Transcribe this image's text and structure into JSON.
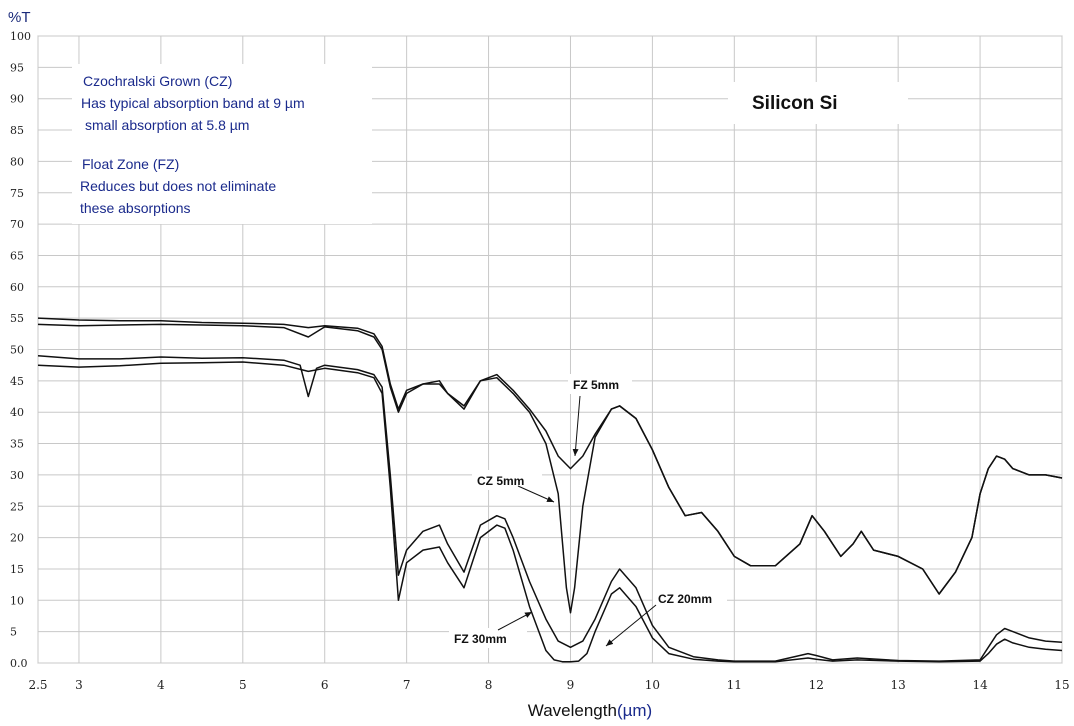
{
  "chart_data": {
    "type": "line",
    "title": "Silicon  Si",
    "ylabel": "%T",
    "xlabel": "Wavelength",
    "xlabel_unit": "(µm)",
    "xlim": [
      2.5,
      15
    ],
    "ylim": [
      0,
      100
    ],
    "x_ticks": [
      "2.5",
      "3",
      "4",
      "5",
      "6",
      "7",
      "8",
      "9",
      "10",
      "11",
      "12",
      "13",
      "14",
      "15"
    ],
    "y_ticks": [
      "0.0",
      "5",
      "10",
      "15",
      "20",
      "25",
      "30",
      "35",
      "40",
      "45",
      "50",
      "55",
      "60",
      "65",
      "70",
      "75",
      "80",
      "85",
      "90",
      "95",
      "100"
    ],
    "grid": true,
    "annotations": [
      {
        "lines": [
          "Czochralski Grown (CZ)",
          "Has typical absorption band at 9 µm",
          "small absorption at 5.8 µm"
        ]
      },
      {
        "lines": [
          "Float Zone (FZ)",
          "Reduces but does not eliminate",
          "these absorptions"
        ]
      }
    ],
    "labels": {
      "fz5": "FZ 5mm",
      "cz5": "CZ 5mm",
      "cz20": "CZ 20mm",
      "fz30": "FZ 30mm"
    },
    "series": [
      {
        "name": "FZ 5mm",
        "x": [
          2.5,
          3.0,
          3.5,
          4.0,
          4.5,
          5.0,
          5.5,
          5.8,
          6.0,
          6.4,
          6.6,
          6.7,
          6.8,
          6.9,
          7.0,
          7.2,
          7.4,
          7.5,
          7.7,
          7.9,
          8.1,
          8.3,
          8.5,
          8.7,
          8.85,
          9.0,
          9.15,
          9.3,
          9.5,
          9.6,
          9.8,
          10.0,
          10.2,
          10.4,
          10.6,
          10.8,
          11.0,
          11.2,
          11.5,
          11.8,
          11.95,
          12.1,
          12.3,
          12.45,
          12.55,
          12.7,
          13.0,
          13.3,
          13.5,
          13.7,
          13.9,
          14.0,
          14.1,
          14.2,
          14.3,
          14.4,
          14.6,
          14.8,
          15.0
        ],
        "y": [
          55,
          54.7,
          54.6,
          54.6,
          54.3,
          54.2,
          54,
          53.5,
          53.8,
          53.4,
          52.5,
          50.5,
          44.5,
          40.5,
          43.5,
          44.5,
          45,
          43,
          41,
          45,
          46,
          43.5,
          40.5,
          37,
          33,
          31,
          33,
          36.5,
          40.5,
          41,
          39,
          34,
          28,
          23.5,
          24,
          21,
          17,
          15.5,
          15.5,
          19,
          23.5,
          21,
          17,
          19,
          21,
          18,
          17,
          15,
          11,
          14.5,
          20,
          27,
          31,
          33,
          32.5,
          31,
          30,
          30,
          29.5
        ]
      },
      {
        "name": "CZ 5mm",
        "x": [
          2.5,
          3.0,
          3.5,
          4.0,
          4.5,
          5.0,
          5.5,
          5.8,
          6.0,
          6.4,
          6.6,
          6.7,
          6.8,
          6.9,
          7.0,
          7.2,
          7.4,
          7.5,
          7.7,
          7.9,
          8.1,
          8.3,
          8.5,
          8.7,
          8.85,
          8.95,
          9.0,
          9.05,
          9.15,
          9.3,
          9.5,
          9.6,
          9.8,
          10.0,
          10.2,
          10.4,
          10.6,
          10.8,
          11.0,
          11.2,
          11.5,
          11.8,
          11.95,
          12.1,
          12.3,
          12.45,
          12.55,
          12.7,
          13.0,
          13.3,
          13.5,
          13.7,
          13.9,
          14.0,
          14.1,
          14.2,
          14.3,
          14.4,
          14.6,
          14.8,
          15.0
        ],
        "y": [
          54,
          53.8,
          53.9,
          54,
          53.9,
          53.8,
          53.5,
          52,
          53.6,
          53,
          52,
          50,
          44,
          40,
          43,
          44.5,
          44.5,
          43,
          40.5,
          45,
          45.5,
          43,
          40,
          35,
          27,
          12,
          8,
          12,
          25,
          36,
          40.5,
          41,
          39,
          34,
          28,
          23.5,
          24,
          21,
          17,
          15.5,
          15.5,
          19,
          23.5,
          21,
          17,
          19,
          21,
          18,
          17,
          15,
          11,
          14.5,
          20,
          27,
          31,
          33,
          32.5,
          31,
          30,
          30,
          29.5
        ]
      },
      {
        "name": "FZ 30mm",
        "x": [
          2.5,
          3.0,
          3.5,
          4.0,
          4.5,
          5.0,
          5.5,
          5.7,
          5.8,
          5.9,
          6.0,
          6.4,
          6.6,
          6.7,
          6.8,
          6.9,
          7.0,
          7.2,
          7.4,
          7.5,
          7.7,
          7.9,
          8.1,
          8.2,
          8.3,
          8.5,
          8.7,
          8.85,
          9.0,
          9.15,
          9.3,
          9.5,
          9.6,
          9.8,
          10.0,
          10.2,
          10.5,
          10.8,
          11.0,
          11.5,
          11.9,
          12.0,
          12.2,
          12.5,
          13.0,
          13.5,
          14.0,
          14.1,
          14.2,
          14.3,
          14.4,
          14.6,
          14.8,
          15.0
        ],
        "y": [
          49,
          48.5,
          48.5,
          48.8,
          48.6,
          48.7,
          48.3,
          47.5,
          42.5,
          47,
          47.5,
          46.8,
          46,
          44,
          30,
          14,
          18,
          21,
          22,
          19,
          14.5,
          22,
          23.5,
          23,
          20,
          13,
          7,
          3.5,
          2.5,
          3.5,
          7,
          13,
          15,
          12,
          6,
          2.5,
          1,
          0.5,
          0.3,
          0.3,
          1.5,
          1.2,
          0.5,
          0.8,
          0.4,
          0.3,
          0.5,
          2.5,
          4.5,
          5.5,
          5,
          4,
          3.5,
          3.3
        ]
      },
      {
        "name": "CZ 20mm",
        "x": [
          2.5,
          3.0,
          3.5,
          4.0,
          4.5,
          5.0,
          5.5,
          5.8,
          6.0,
          6.4,
          6.6,
          6.7,
          6.8,
          6.9,
          7.0,
          7.2,
          7.4,
          7.5,
          7.7,
          7.9,
          8.1,
          8.2,
          8.3,
          8.5,
          8.7,
          8.8,
          8.9,
          9.0,
          9.1,
          9.2,
          9.3,
          9.5,
          9.6,
          9.8,
          10.0,
          10.2,
          10.5,
          10.8,
          11.0,
          11.5,
          11.9,
          12.0,
          12.2,
          12.5,
          13.0,
          13.5,
          14.0,
          14.1,
          14.2,
          14.3,
          14.4,
          14.6,
          14.8,
          15.0
        ],
        "y": [
          47.5,
          47.2,
          47.4,
          47.8,
          47.9,
          48,
          47.5,
          46.5,
          47,
          46.3,
          45.5,
          43,
          28,
          10,
          16,
          18,
          18.5,
          16,
          12,
          20,
          22,
          21.5,
          18,
          9,
          2,
          0.5,
          0.2,
          0.2,
          0.3,
          1.5,
          5,
          11,
          12,
          9,
          4,
          1.5,
          0.6,
          0.3,
          0.2,
          0.2,
          0.8,
          0.6,
          0.3,
          0.5,
          0.3,
          0.2,
          0.3,
          1.5,
          3,
          3.8,
          3.2,
          2.5,
          2.2,
          2
        ]
      }
    ]
  }
}
